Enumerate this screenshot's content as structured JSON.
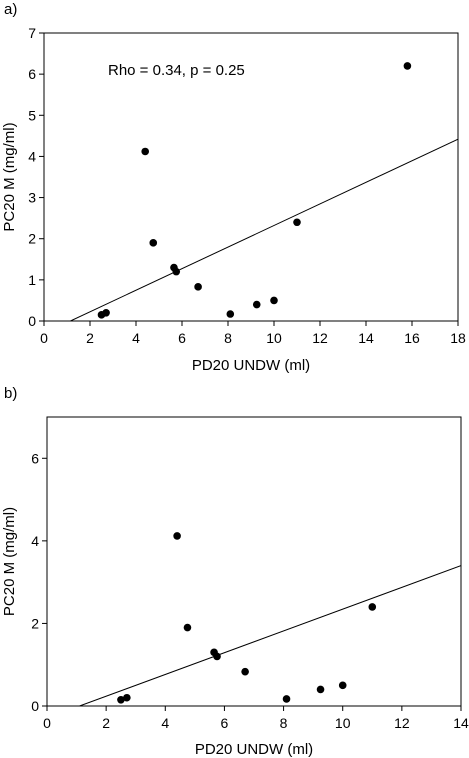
{
  "chart_data": [
    {
      "type": "scatter",
      "panel_label": "a)",
      "xlabel": "PD20 UNDW (ml)",
      "ylabel": "PC20 M (mg/ml)",
      "xlim": [
        0,
        18
      ],
      "ylim": [
        0,
        7
      ],
      "xticks": [
        0,
        2,
        4,
        6,
        8,
        10,
        12,
        14,
        16,
        18
      ],
      "yticks": [
        0,
        1,
        2,
        3,
        4,
        5,
        6,
        7
      ],
      "annotation": "Rho = 0.34, p = 0.25",
      "points": [
        {
          "x": 2.5,
          "y": 0.15
        },
        {
          "x": 2.7,
          "y": 0.2
        },
        {
          "x": 4.4,
          "y": 4.12
        },
        {
          "x": 4.75,
          "y": 1.9
        },
        {
          "x": 5.65,
          "y": 1.3
        },
        {
          "x": 5.75,
          "y": 1.2
        },
        {
          "x": 6.7,
          "y": 0.83
        },
        {
          "x": 8.1,
          "y": 0.17
        },
        {
          "x": 9.25,
          "y": 0.4
        },
        {
          "x": 10.0,
          "y": 0.5
        },
        {
          "x": 11.0,
          "y": 2.4
        },
        {
          "x": 15.8,
          "y": 6.2
        }
      ],
      "fit_line": [
        {
          "x": 1.15,
          "y": 0
        },
        {
          "x": 18,
          "y": 4.42
        }
      ],
      "grid": false,
      "legend": "none"
    },
    {
      "type": "scatter",
      "panel_label": "b)",
      "xlabel": "PD20 UNDW (ml)",
      "ylabel": "PC20 M (mg/ml)",
      "xlim": [
        0,
        14
      ],
      "ylim": [
        0,
        7
      ],
      "xticks": [
        0,
        2,
        4,
        6,
        8,
        10,
        12,
        14
      ],
      "yticks": [
        0,
        2,
        4,
        6
      ],
      "points": [
        {
          "x": 2.5,
          "y": 0.15
        },
        {
          "x": 2.7,
          "y": 0.2
        },
        {
          "x": 4.4,
          "y": 4.12
        },
        {
          "x": 4.75,
          "y": 1.9
        },
        {
          "x": 5.65,
          "y": 1.3
        },
        {
          "x": 5.75,
          "y": 1.2
        },
        {
          "x": 6.7,
          "y": 0.83
        },
        {
          "x": 8.1,
          "y": 0.17
        },
        {
          "x": 9.25,
          "y": 0.4
        },
        {
          "x": 10.0,
          "y": 0.5
        },
        {
          "x": 11.0,
          "y": 2.4
        }
      ],
      "fit_line": [
        {
          "x": 1.1,
          "y": 0
        },
        {
          "x": 14,
          "y": 3.4
        }
      ],
      "grid": false,
      "legend": "none"
    }
  ],
  "colors": {
    "marker": "#000000",
    "line": "#000000",
    "background": "#ffffff"
  }
}
